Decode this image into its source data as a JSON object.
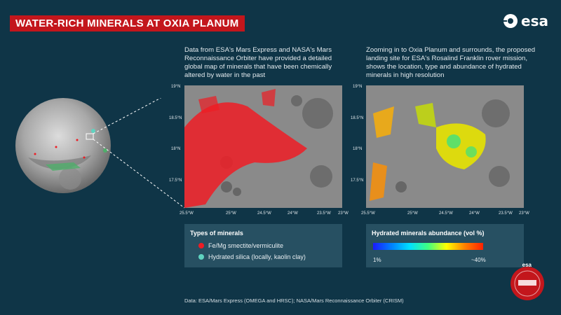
{
  "title": "WATER-RICH MINERALS AT OXIA PLANUM",
  "logo_text": "esa",
  "left_description": "Data from ESA's Mars Express and NASA's Mars Reconnaissance Orbiter have provided a detailed global map of minerals that have been chemically altered by water in the past",
  "right_description": "Zooming in to Oxia Planum and surrounds, the proposed landing site for ESA's Rosalind Franklin rover mission, shows the location, type and abundance of hydrated minerals in high resolution",
  "map_ticks": {
    "y": [
      "19°N",
      "18.5°N",
      "18°N",
      "17.5°N"
    ],
    "x": [
      "25.5°W",
      "25°W",
      "24.5°W",
      "24°W",
      "23.5°W",
      "23°W"
    ]
  },
  "legend_minerals": {
    "title": "Types of minerals",
    "items": [
      {
        "label": "Fe/Mg smectite/vermiculite",
        "color": "#ee1c24"
      },
      {
        "label": "Hydrated silica (locally, kaolin clay)",
        "color": "#5fd3c0"
      }
    ]
  },
  "legend_abundance": {
    "title": "Hydrated minerals abundance (vol %)",
    "min_label": "1%",
    "max_label": "~40%"
  },
  "credit": "Data: ESA/Mars Express (OMEGA and HRSC); NASA/Mars Reconnaissance Orbiter (CRISM)",
  "badge_logo_text": "esa"
}
